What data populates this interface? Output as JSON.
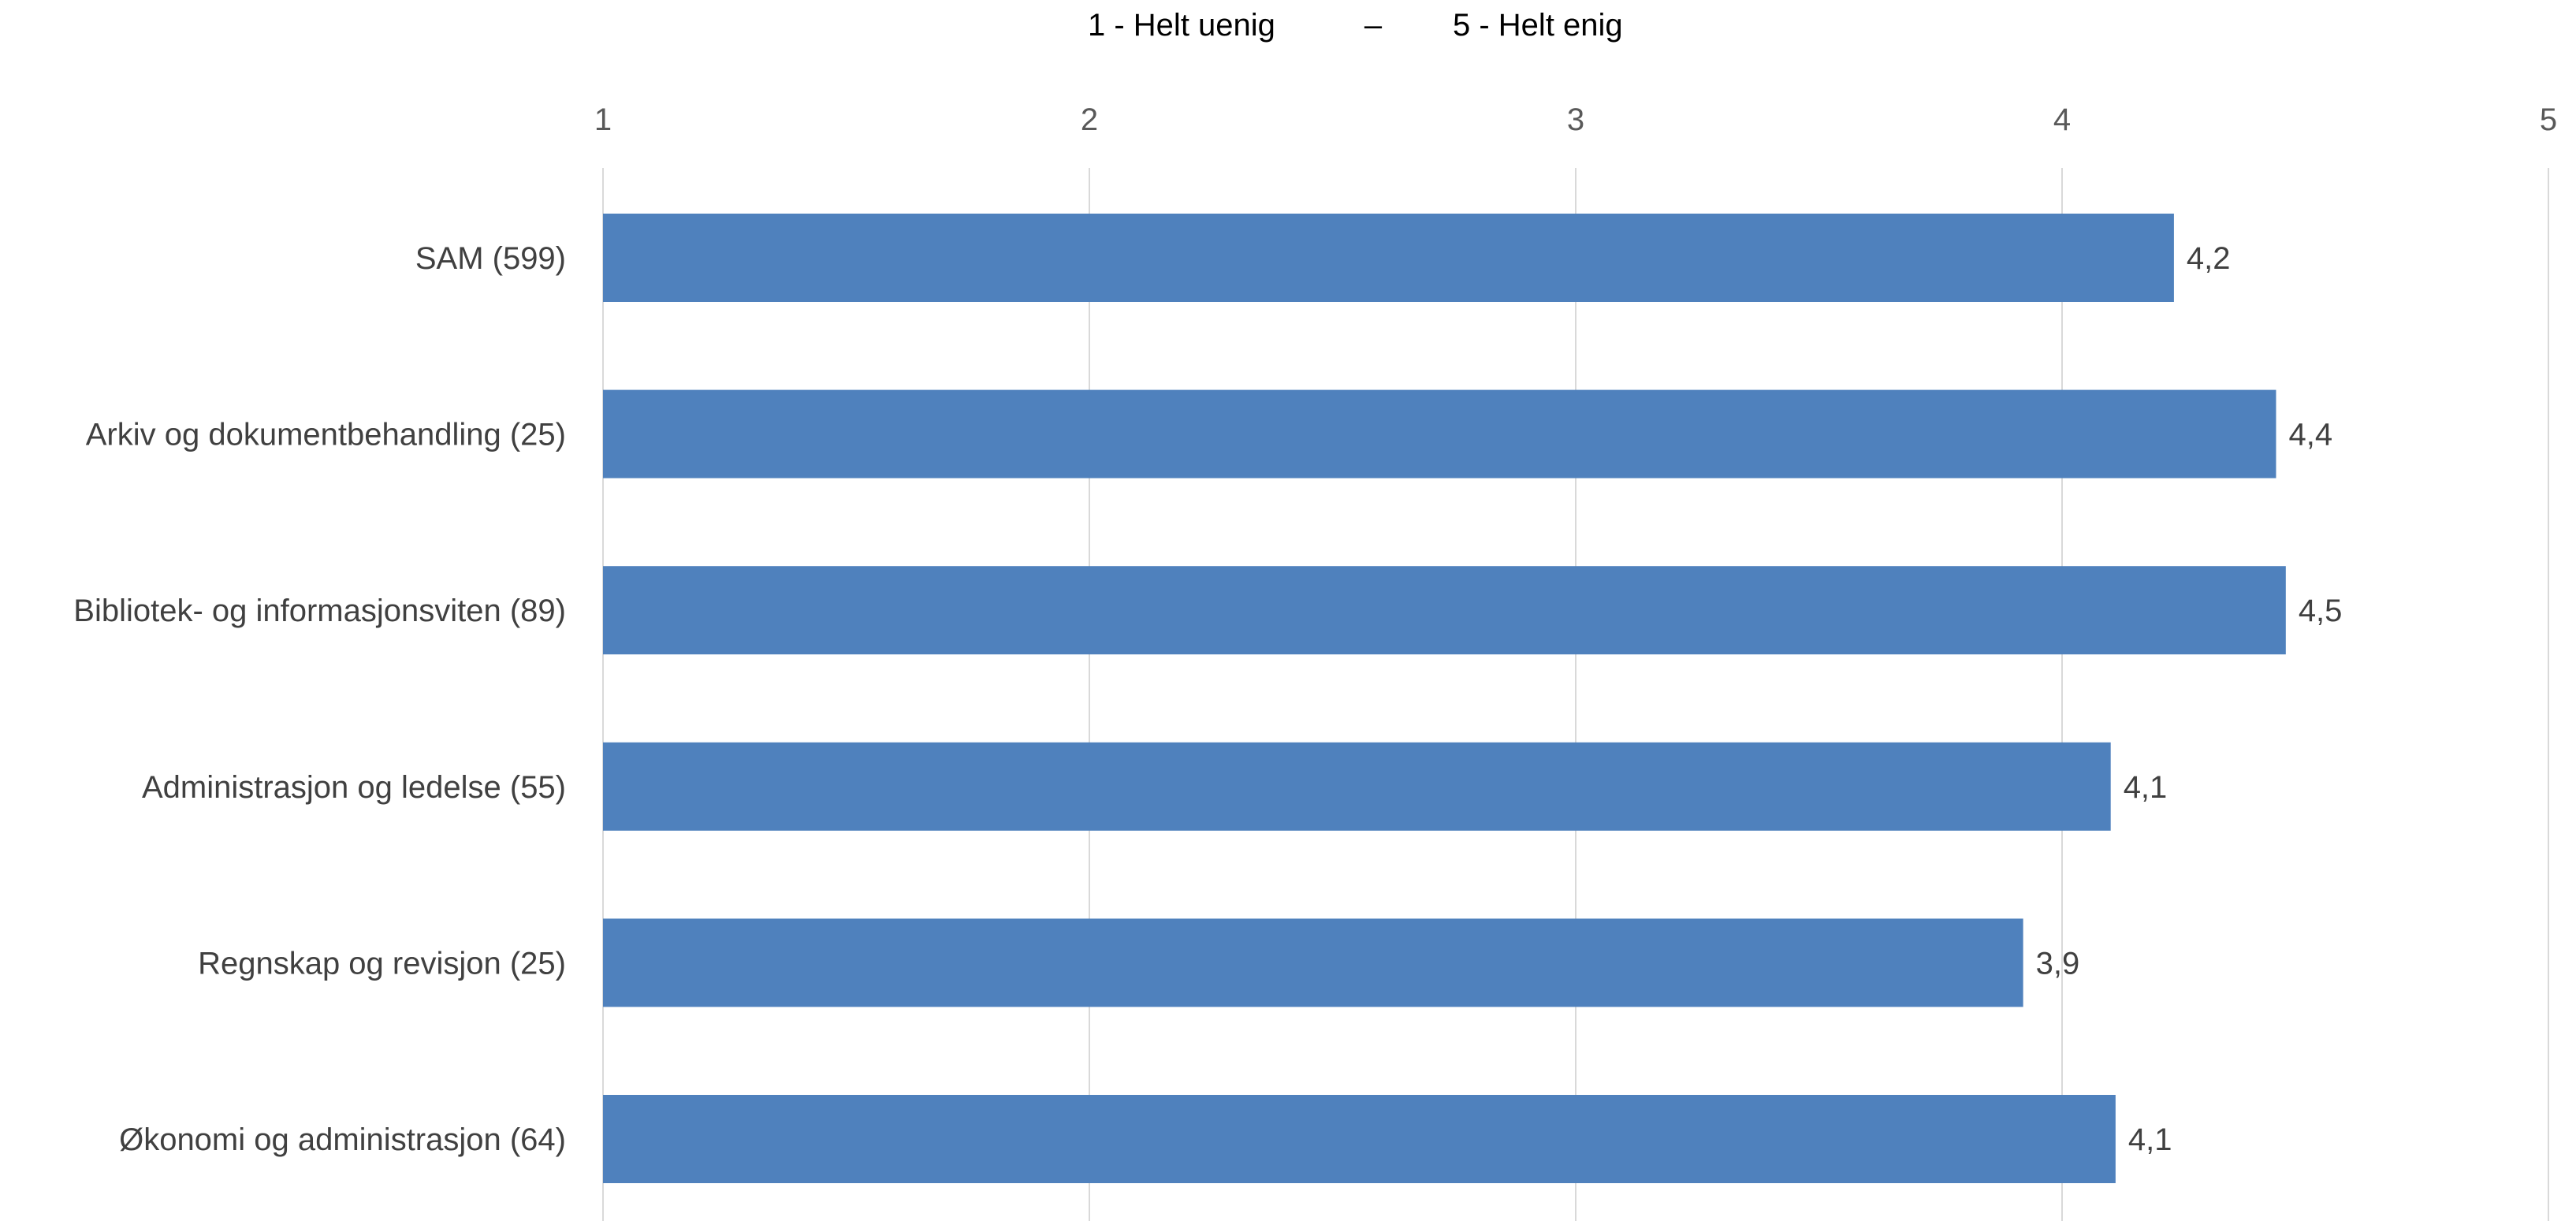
{
  "chart_data": {
    "type": "bar",
    "orientation": "horizontal",
    "title": "",
    "legend": {
      "left_text": "1 - Helt uenig",
      "separator": "–",
      "right_text": "5 - Helt enig",
      "placement": "top-center"
    },
    "categories": [
      "SAM (599)",
      "Arkiv og dokumentbehandling (25)",
      "Bibliotek- og informasjonsviten (89)",
      "Administrasjon og ledelse (55)",
      "Regnskap og revisjon (25)",
      "Økonomi og administrasjon (64)"
    ],
    "values": [
      4.23,
      4.44,
      4.46,
      4.1,
      3.92,
      4.11
    ],
    "data_labels": [
      "4,2",
      "4,4",
      "4,5",
      "4,1",
      "3,9",
      "4,1"
    ],
    "xlim": [
      1,
      5
    ],
    "ticks": [
      1,
      2,
      3,
      4,
      5
    ],
    "tick_labels": [
      "1",
      "2",
      "3",
      "4",
      "5"
    ],
    "xaxis_position": "top",
    "grid": true,
    "bar_color": "#4f81bd",
    "gridline_color": "#d9d9d9"
  }
}
